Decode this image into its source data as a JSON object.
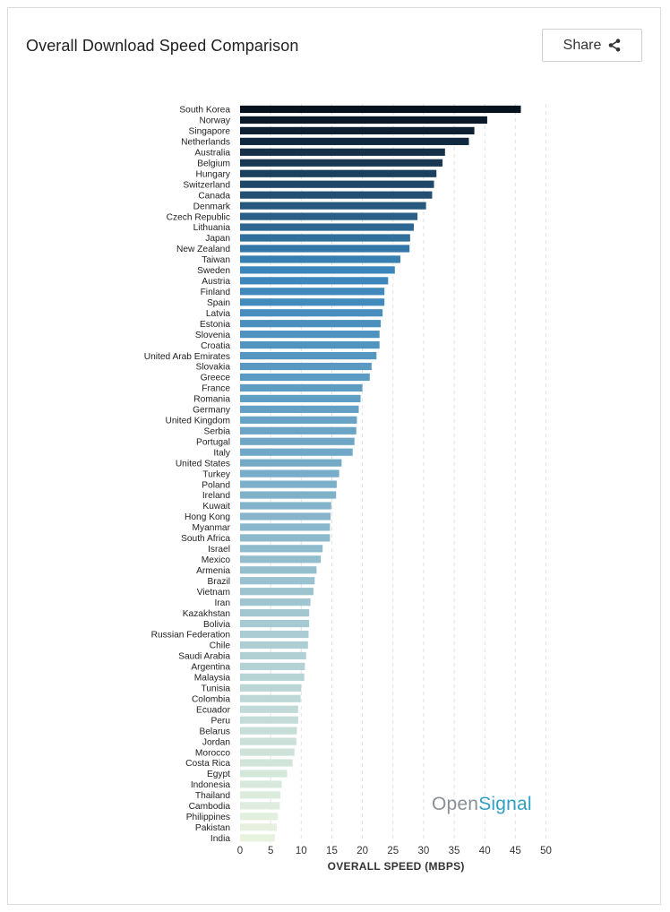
{
  "header": {
    "title": "Overall Download Speed Comparison",
    "share_label": "Share"
  },
  "logo": {
    "part1": "Open",
    "part2": "Signal"
  },
  "colors": {
    "dark": "#07121f",
    "mid": "#3a85bb",
    "light": "#e8f3df",
    "grid": "#e2e2e2"
  },
  "chart_data": {
    "type": "bar",
    "orientation": "horizontal",
    "title": "Overall Download Speed Comparison",
    "xlabel": "OVERALL SPEED (MBPS)",
    "ylabel": "",
    "xlim": [
      0,
      50
    ],
    "xticks": [
      0,
      5,
      10,
      15,
      20,
      25,
      30,
      35,
      40,
      45,
      50
    ],
    "grid": "vertical dashed",
    "categories": [
      "South Korea",
      "Norway",
      "Singapore",
      "Netherlands",
      "Australia",
      "Belgium",
      "Hungary",
      "Switzerland",
      "Canada",
      "Denmark",
      "Czech Republic",
      "Lithuania",
      "Japan",
      "New Zealand",
      "Taiwan",
      "Sweden",
      "Austria",
      "Finland",
      "Spain",
      "Latvia",
      "Estonia",
      "Slovenia",
      "Croatia",
      "United Arab Emirates",
      "Slovakia",
      "Greece",
      "France",
      "Romania",
      "Germany",
      "United Kingdom",
      "Serbia",
      "Portugal",
      "Italy",
      "United States",
      "Turkey",
      "Poland",
      "Ireland",
      "Kuwait",
      "Hong Kong",
      "Myanmar",
      "South Africa",
      "Israel",
      "Mexico",
      "Armenia",
      "Brazil",
      "Vietnam",
      "Iran",
      "Kazakhstan",
      "Bolivia",
      "Russian Federation",
      "Chile",
      "Saudi Arabia",
      "Argentina",
      "Malaysia",
      "Tunisia",
      "Colombia",
      "Ecuador",
      "Peru",
      "Belarus",
      "Jordan",
      "Morocco",
      "Costa Rica",
      "Egypt",
      "Indonesia",
      "Thailand",
      "Cambodia",
      "Philippines",
      "Pakistan",
      "India"
    ],
    "values": [
      45.9,
      40.4,
      38.3,
      37.4,
      33.5,
      33.1,
      32.1,
      31.7,
      31.4,
      30.4,
      29.0,
      28.4,
      27.8,
      27.7,
      26.2,
      25.3,
      24.2,
      23.6,
      23.6,
      23.3,
      23.0,
      22.8,
      22.8,
      22.3,
      21.5,
      21.2,
      20.0,
      19.7,
      19.4,
      19.1,
      19.0,
      18.7,
      18.4,
      16.6,
      16.2,
      15.8,
      15.7,
      14.9,
      14.8,
      14.7,
      14.7,
      13.5,
      13.2,
      12.5,
      12.2,
      12.0,
      11.5,
      11.3,
      11.3,
      11.2,
      11.1,
      10.8,
      10.6,
      10.5,
      10.0,
      9.9,
      9.5,
      9.5,
      9.3,
      9.2,
      8.9,
      8.6,
      7.7,
      6.8,
      6.6,
      6.5,
      6.2,
      6.0,
      5.7
    ]
  }
}
